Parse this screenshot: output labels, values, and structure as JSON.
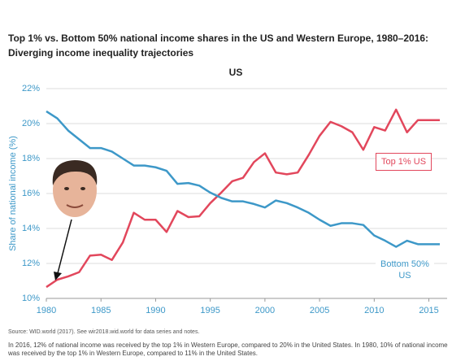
{
  "chart_data": {
    "type": "line",
    "title": "Top 1% vs. Bottom 50% national income shares in the US and Western Europe, 1980–2016:",
    "subtitle": "Diverging income inequality trajectories",
    "panel_title": "US",
    "ylabel": "Share of national income (%)",
    "source": "Source: WID.world (2017). See wir2018.wid.world for data series and notes.",
    "note": "In 2016, 12% of national income was received by the top 1% in Western Europe, compared to 20% in the United States. In 1980, 10% of national income was received by the top 1% in Western Europe, compared to 11% in the United States.",
    "x": [
      1980,
      1981,
      1982,
      1983,
      1984,
      1985,
      1986,
      1987,
      1988,
      1989,
      1990,
      1991,
      1992,
      1993,
      1994,
      1995,
      1996,
      1997,
      1998,
      1999,
      2000,
      2001,
      2002,
      2003,
      2004,
      2005,
      2006,
      2007,
      2008,
      2009,
      2010,
      2011,
      2012,
      2013,
      2014,
      2015,
      2016
    ],
    "series": [
      {
        "name": "Top 1% US",
        "color": "#e2475c",
        "values": [
          10.65,
          11.07,
          11.26,
          11.5,
          12.45,
          12.5,
          12.2,
          13.2,
          14.9,
          14.5,
          14.5,
          13.8,
          15.0,
          14.65,
          14.7,
          15.45,
          16.05,
          16.7,
          16.9,
          17.8,
          18.3,
          17.2,
          17.1,
          17.2,
          18.2,
          19.3,
          20.1,
          19.85,
          19.5,
          18.5,
          19.8,
          19.6,
          20.8,
          19.5,
          20.2,
          20.2,
          20.2
        ]
      },
      {
        "name": "Bottom 50% US",
        "color": "#3d98c8",
        "values": [
          20.7,
          20.3,
          19.6,
          19.1,
          18.6,
          18.6,
          18.4,
          18.0,
          17.6,
          17.6,
          17.5,
          17.3,
          16.55,
          16.6,
          16.45,
          16.05,
          15.75,
          15.55,
          15.55,
          15.4,
          15.2,
          15.6,
          15.45,
          15.2,
          14.9,
          14.5,
          14.15,
          14.3,
          14.3,
          14.2,
          13.6,
          13.3,
          12.95,
          13.3,
          13.1,
          13.1,
          13.1
        ]
      }
    ],
    "xlim": [
      1980,
      2016
    ],
    "xticks": [
      1980,
      1985,
      1990,
      1995,
      2000,
      2005,
      2010,
      2015
    ],
    "ylim": [
      10,
      22
    ],
    "yticks": [
      {
        "value": 10,
        "label": "10%"
      },
      {
        "value": 12,
        "label": "12%"
      },
      {
        "value": 14,
        "label": "14%"
      },
      {
        "value": 16,
        "label": "16%"
      },
      {
        "value": 18,
        "label": "18%"
      },
      {
        "value": 20,
        "label": "20%"
      },
      {
        "value": 22,
        "label": "22%"
      }
    ],
    "grid": true
  }
}
